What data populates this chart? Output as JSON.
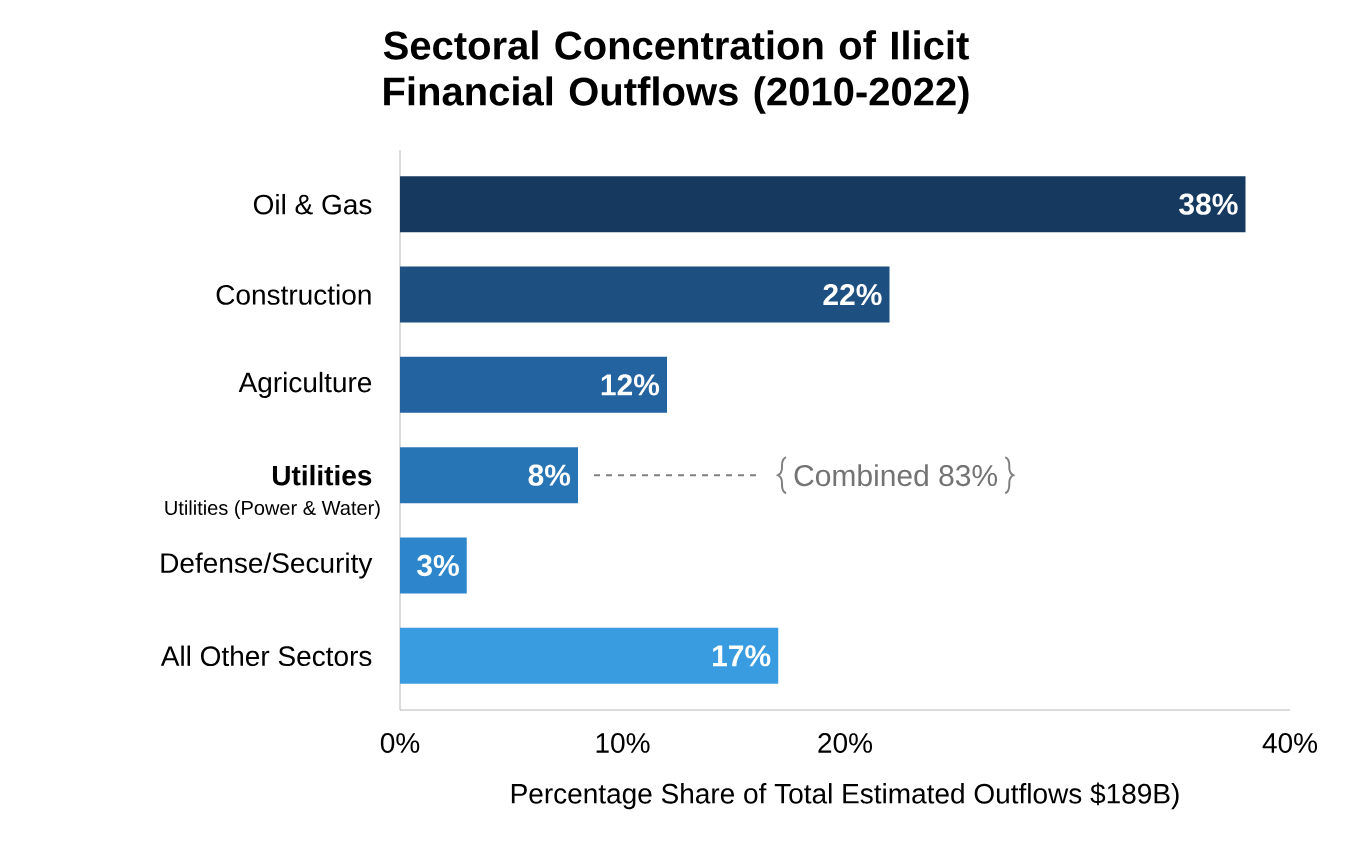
{
  "chart_data": {
    "type": "bar",
    "orientation": "horizontal",
    "title": "Sectoral Concentration of Ilicit Financial Outflows (2010-2022)",
    "xlabel": "Percentage Share of Total Estimated Outflows $189B)",
    "categories": [
      "Oil & Gas",
      "Construction",
      "Agriculture",
      "**Utilities**",
      "Defense/Security",
      "All Other Sectors"
    ],
    "values": [
      38,
      22,
      12,
      8,
      3,
      17
    ],
    "value_labels": [
      "38%",
      "22%",
      "12%",
      "8%",
      "3%",
      "17%"
    ],
    "colors": [
      "#163a5f",
      "#1d4f80",
      "#23639f",
      "#2875b6",
      "#2d86cb",
      "#3a9ce0"
    ],
    "xlim": [
      0,
      40
    ],
    "xticks": [
      {
        "value": 0,
        "label": "0%"
      },
      {
        "value": 10,
        "label": "10%"
      },
      {
        "value": 20,
        "label": "20%"
      },
      {
        "value": 40,
        "label": "40%"
      }
    ],
    "annotations": [
      "Utilities (Power & Water)",
      "Combined 83%"
    ],
    "grid": false
  }
}
